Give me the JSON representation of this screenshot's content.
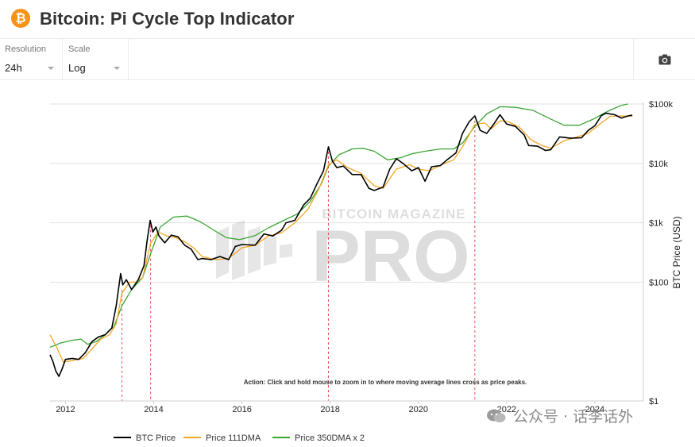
{
  "header": {
    "logo_glyph": "₿",
    "title": "Bitcoin: Pi Cycle Top Indicator"
  },
  "toolbar": {
    "resolution": {
      "label": "Resolution",
      "value": "24h"
    },
    "scale": {
      "label": "Scale",
      "value": "Log"
    },
    "screenshot_icon": "camera-icon"
  },
  "watermark": {
    "top": "BITCOIN MAGAZINE",
    "main": "PRO",
    "overlay_tag": "公众号 · 话李话外"
  },
  "chart_data": {
    "type": "line",
    "title": "",
    "ylabel": "BTC Price (USD)",
    "yscale": "log",
    "ylim": [
      1,
      100000
    ],
    "xlim": [
      2011.65,
      2025.1
    ],
    "y_ticks": [
      {
        "value": 1,
        "label": "$1"
      },
      {
        "value": 100,
        "label": "$100"
      },
      {
        "value": 1000,
        "label": "$1k"
      },
      {
        "value": 10000,
        "label": "$10k"
      },
      {
        "value": 100000,
        "label": "$100k"
      }
    ],
    "x_ticks": [
      {
        "value": 2012,
        "label": "2012"
      },
      {
        "value": 2014,
        "label": "2014"
      },
      {
        "value": 2016,
        "label": "2016"
      },
      {
        "value": 2018,
        "label": "2018"
      },
      {
        "value": 2020,
        "label": "2020"
      },
      {
        "value": 2022,
        "label": "2022"
      },
      {
        "value": 2024,
        "label": "2024"
      }
    ],
    "legend_position": "bottom",
    "annotation": "Action: Click and hold mouse to zoom in to where moving average lines cross as price peaks.",
    "cross_markers": [
      2013.28,
      2013.93,
      2017.96,
      2021.28
    ],
    "series": [
      {
        "name": "BTC Price",
        "color": "#000000",
        "points": [
          [
            2011.65,
            6.0
          ],
          [
            2011.72,
            4.5
          ],
          [
            2011.78,
            3.2
          ],
          [
            2011.85,
            2.6
          ],
          [
            2011.92,
            3.4
          ],
          [
            2012.0,
            5.0
          ],
          [
            2012.15,
            5.2
          ],
          [
            2012.3,
            5.0
          ],
          [
            2012.45,
            6.5
          ],
          [
            2012.6,
            10.0
          ],
          [
            2012.75,
            12.0
          ],
          [
            2012.9,
            13.0
          ],
          [
            2013.05,
            17.0
          ],
          [
            2013.15,
            40.0
          ],
          [
            2013.25,
            140.0
          ],
          [
            2013.3,
            90.0
          ],
          [
            2013.38,
            110.0
          ],
          [
            2013.5,
            75.0
          ],
          [
            2013.65,
            110.0
          ],
          [
            2013.78,
            190.0
          ],
          [
            2013.85,
            500.0
          ],
          [
            2013.92,
            1100.0
          ],
          [
            2013.98,
            700.0
          ],
          [
            2014.05,
            850.0
          ],
          [
            2014.12,
            600.0
          ],
          [
            2014.25,
            460.0
          ],
          [
            2014.4,
            620.0
          ],
          [
            2014.55,
            580.0
          ],
          [
            2014.7,
            420.0
          ],
          [
            2014.85,
            360.0
          ],
          [
            2015.0,
            240.0
          ],
          [
            2015.1,
            250.0
          ],
          [
            2015.3,
            240.0
          ],
          [
            2015.5,
            270.0
          ],
          [
            2015.7,
            240.0
          ],
          [
            2015.85,
            400.0
          ],
          [
            2016.0,
            430.0
          ],
          [
            2016.3,
            420.0
          ],
          [
            2016.5,
            650.0
          ],
          [
            2016.7,
            600.0
          ],
          [
            2016.9,
            750.0
          ],
          [
            2017.0,
            1000.0
          ],
          [
            2017.2,
            1100.0
          ],
          [
            2017.4,
            2000.0
          ],
          [
            2017.55,
            2600.0
          ],
          [
            2017.7,
            4500.0
          ],
          [
            2017.85,
            7500.0
          ],
          [
            2017.96,
            19000.0
          ],
          [
            2018.05,
            11000.0
          ],
          [
            2018.15,
            8500.0
          ],
          [
            2018.3,
            9000.0
          ],
          [
            2018.5,
            6500.0
          ],
          [
            2018.7,
            6500.0
          ],
          [
            2018.88,
            3800.0
          ],
          [
            2019.0,
            3500.0
          ],
          [
            2019.2,
            4000.0
          ],
          [
            2019.35,
            8000.0
          ],
          [
            2019.5,
            12000.0
          ],
          [
            2019.65,
            10000.0
          ],
          [
            2019.85,
            7500.0
          ],
          [
            2020.0,
            8500.0
          ],
          [
            2020.15,
            5000.0
          ],
          [
            2020.3,
            8800.0
          ],
          [
            2020.5,
            9200.0
          ],
          [
            2020.65,
            11500.0
          ],
          [
            2020.85,
            15000.0
          ],
          [
            2021.0,
            32000.0
          ],
          [
            2021.15,
            50000.0
          ],
          [
            2021.28,
            63000.0
          ],
          [
            2021.4,
            36000.0
          ],
          [
            2021.55,
            32000.0
          ],
          [
            2021.7,
            45000.0
          ],
          [
            2021.85,
            66000.0
          ],
          [
            2022.0,
            46000.0
          ],
          [
            2022.2,
            42000.0
          ],
          [
            2022.4,
            30000.0
          ],
          [
            2022.5,
            20000.0
          ],
          [
            2022.7,
            19500.0
          ],
          [
            2022.88,
            16500.0
          ],
          [
            2023.0,
            17000.0
          ],
          [
            2023.2,
            28000.0
          ],
          [
            2023.45,
            26500.0
          ],
          [
            2023.7,
            27000.0
          ],
          [
            2023.85,
            36000.0
          ],
          [
            2024.0,
            43000.0
          ],
          [
            2024.15,
            64000.0
          ],
          [
            2024.25,
            70000.0
          ],
          [
            2024.45,
            66000.0
          ],
          [
            2024.6,
            58000.0
          ],
          [
            2024.75,
            63000.0
          ],
          [
            2024.85,
            65000.0
          ]
        ]
      },
      {
        "name": "Price 111DMA",
        "color": "#f5a623",
        "points": [
          [
            2011.65,
            13.0
          ],
          [
            2011.8,
            8.0
          ],
          [
            2011.95,
            4.5
          ],
          [
            2012.1,
            4.7
          ],
          [
            2012.4,
            5.2
          ],
          [
            2012.6,
            7.5
          ],
          [
            2012.8,
            11.0
          ],
          [
            2013.0,
            13.0
          ],
          [
            2013.15,
            20.0
          ],
          [
            2013.28,
            65.0
          ],
          [
            2013.45,
            100.0
          ],
          [
            2013.6,
            100.0
          ],
          [
            2013.75,
            120.0
          ],
          [
            2013.93,
            450.0
          ],
          [
            2014.1,
            700.0
          ],
          [
            2014.3,
            600.0
          ],
          [
            2014.5,
            560.0
          ],
          [
            2014.7,
            480.0
          ],
          [
            2014.9,
            380.0
          ],
          [
            2015.1,
            270.0
          ],
          [
            2015.4,
            240.0
          ],
          [
            2015.7,
            250.0
          ],
          [
            2016.0,
            380.0
          ],
          [
            2016.3,
            420.0
          ],
          [
            2016.6,
            600.0
          ],
          [
            2016.9,
            680.0
          ],
          [
            2017.2,
            1000.0
          ],
          [
            2017.5,
            1700.0
          ],
          [
            2017.75,
            3800.0
          ],
          [
            2017.96,
            9500.0
          ],
          [
            2018.15,
            11500.0
          ],
          [
            2018.4,
            8500.0
          ],
          [
            2018.7,
            6800.0
          ],
          [
            2019.0,
            4200.0
          ],
          [
            2019.2,
            3800.0
          ],
          [
            2019.5,
            8000.0
          ],
          [
            2019.8,
            9500.0
          ],
          [
            2020.0,
            8000.0
          ],
          [
            2020.25,
            7500.0
          ],
          [
            2020.5,
            9300.0
          ],
          [
            2020.8,
            11500.0
          ],
          [
            2021.0,
            19000.0
          ],
          [
            2021.28,
            45000.0
          ],
          [
            2021.5,
            48000.0
          ],
          [
            2021.65,
            38000.0
          ],
          [
            2021.85,
            52000.0
          ],
          [
            2022.05,
            50000.0
          ],
          [
            2022.3,
            40000.0
          ],
          [
            2022.55,
            25000.0
          ],
          [
            2022.8,
            20000.0
          ],
          [
            2023.0,
            18000.0
          ],
          [
            2023.3,
            24000.0
          ],
          [
            2023.6,
            28000.0
          ],
          [
            2023.85,
            32000.0
          ],
          [
            2024.1,
            45000.0
          ],
          [
            2024.35,
            62000.0
          ],
          [
            2024.6,
            63000.0
          ],
          [
            2024.85,
            62000.0
          ]
        ]
      },
      {
        "name": "Price 350DMA x 2",
        "color": "#3aa635",
        "points": [
          [
            2011.65,
            8.0
          ],
          [
            2011.9,
            9.5
          ],
          [
            2012.15,
            10.5
          ],
          [
            2012.35,
            11.0
          ],
          [
            2012.5,
            9.0
          ],
          [
            2012.7,
            10.0
          ],
          [
            2012.9,
            13.0
          ],
          [
            2013.1,
            18.0
          ],
          [
            2013.28,
            40.0
          ],
          [
            2013.5,
            75.0
          ],
          [
            2013.75,
            120.0
          ],
          [
            2013.93,
            300.0
          ],
          [
            2014.15,
            850.0
          ],
          [
            2014.45,
            1250.0
          ],
          [
            2014.75,
            1300.0
          ],
          [
            2015.05,
            1050.0
          ],
          [
            2015.35,
            760.0
          ],
          [
            2015.65,
            560.0
          ],
          [
            2015.95,
            520.0
          ],
          [
            2016.3,
            610.0
          ],
          [
            2016.6,
            820.0
          ],
          [
            2016.95,
            1100.0
          ],
          [
            2017.25,
            1400.0
          ],
          [
            2017.55,
            2300.0
          ],
          [
            2017.8,
            4500.0
          ],
          [
            2017.96,
            9000.0
          ],
          [
            2018.2,
            14000.0
          ],
          [
            2018.5,
            17500.0
          ],
          [
            2018.75,
            18000.0
          ],
          [
            2019.0,
            16000.0
          ],
          [
            2019.3,
            11500.0
          ],
          [
            2019.6,
            12500.0
          ],
          [
            2019.85,
            14500.0
          ],
          [
            2020.15,
            16000.0
          ],
          [
            2020.5,
            17500.0
          ],
          [
            2020.8,
            17500.0
          ],
          [
            2021.0,
            22000.0
          ],
          [
            2021.28,
            42000.0
          ],
          [
            2021.55,
            68000.0
          ],
          [
            2021.85,
            90000.0
          ],
          [
            2022.2,
            88000.0
          ],
          [
            2022.6,
            78000.0
          ],
          [
            2022.95,
            58000.0
          ],
          [
            2023.3,
            44000.0
          ],
          [
            2023.65,
            44000.0
          ],
          [
            2023.95,
            55000.0
          ],
          [
            2024.3,
            76000.0
          ],
          [
            2024.6,
            95000.0
          ],
          [
            2024.75,
            102000.0
          ]
        ]
      }
    ]
  }
}
